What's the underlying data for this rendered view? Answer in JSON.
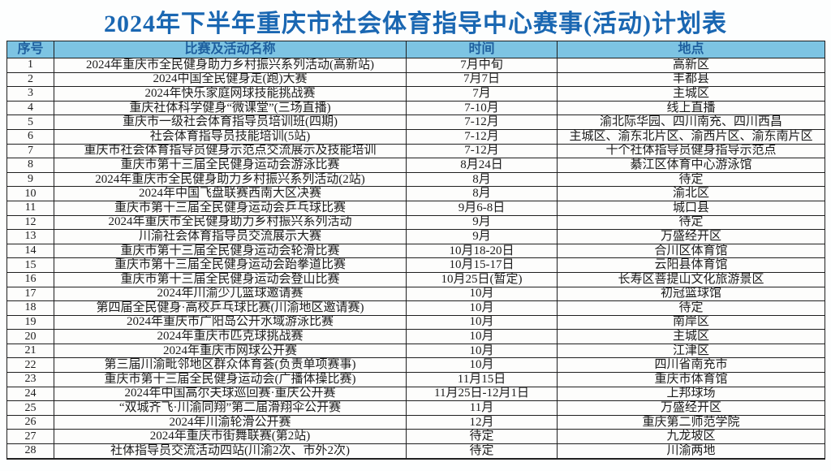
{
  "title": "2024年下半年重庆市社会体育指导中心赛事(活动)计划表",
  "colors": {
    "page-bg": "#fdfefe",
    "title-text": "#1a67b2",
    "header-bg": "#7dc4e3",
    "header-text": "#1e5f9e",
    "border": "#1f1f1f",
    "body-text": "#1c1c1c",
    "cell-bg": "#fdfdfc"
  },
  "table": {
    "headers": [
      "序号",
      "比赛及活动名称",
      "时间",
      "地点"
    ],
    "rows": [
      [
        "1",
        "2024年重庆市全民健身助力乡村振兴系列活动(高新站)",
        "7月中旬",
        "高新区"
      ],
      [
        "2",
        "2024中国全民健身走(跑)大赛",
        "7月7日",
        "丰都县"
      ],
      [
        "3",
        "2024年快乐家庭网球技能挑战赛",
        "7月",
        "主城区"
      ],
      [
        "4",
        "重庆社体科学健身“微课堂”(三场直播)",
        "7-10月",
        "线上直播"
      ],
      [
        "5",
        "重庆市一级社会体育指导员培训班(四期)",
        "7-12月",
        "渝北际华园、四川南充、四川西昌"
      ],
      [
        "6",
        "社会体育指导员技能培训(5站)",
        "7-12月",
        "主城区、渝东北片区、渝西片区、渝东南片区"
      ],
      [
        "7",
        "重庆市社会体育指导员健身示范点交流展示及技能培训",
        "7-12月",
        "十个社体指导员健身指导示范点"
      ],
      [
        "8",
        "重庆市第十三届全民健身运动会游泳比赛",
        "8月24日",
        "綦江区体育中心游泳馆"
      ],
      [
        "9",
        "2024年重庆市全民健身助力乡村振兴系列活动(2站)",
        "8月",
        "待定"
      ],
      [
        "10",
        "2024年中国飞盘联赛西南大区决赛",
        "8月",
        "渝北区"
      ],
      [
        "11",
        "重庆市第十三届全民健身运动会乒乓球比赛",
        "9月6-8日",
        "城口县"
      ],
      [
        "12",
        "2024年重庆市全民健身助力乡村振兴系列活动",
        "9月",
        "待定"
      ],
      [
        "13",
        "川渝社会体育指导员交流展示大赛",
        "9月",
        "万盛经开区"
      ],
      [
        "14",
        "重庆市第十三届全民健身运动会轮滑比赛",
        "10月18-20日",
        "合川区体育馆"
      ],
      [
        "15",
        "重庆市第十三届全民健身运动会跆拳道比赛",
        "10月15-17日",
        "云阳县体育馆"
      ],
      [
        "16",
        "重庆市第十三届全民健身运动会登山比赛",
        "10月25日(暂定)",
        "长寿区菩提山文化旅游景区"
      ],
      [
        "17",
        "2024年川渝少儿篮球邀请赛",
        "10月",
        "初冠篮球馆"
      ],
      [
        "18",
        "第四届全民健身·高校乒乓球比赛(川渝地区邀请赛)",
        "10月",
        "待定"
      ],
      [
        "19",
        "2024年重庆市广阳岛公开水域游泳比赛",
        "10月",
        "南岸区"
      ],
      [
        "20",
        "2024年重庆市匹克球挑战赛",
        "10月",
        "主城区"
      ],
      [
        "21",
        "2024年重庆市网球公开赛",
        "10月",
        "江津区"
      ],
      [
        "22",
        "第三届川渝毗邻地区群众体育荟(负责单项赛事)",
        "10月",
        "四川省南充市"
      ],
      [
        "23",
        "重庆市第十三届全民健身运动会(广播体操比赛)",
        "11月15日",
        "重庆市体育馆"
      ],
      [
        "24",
        "2024年中国高尔夫球巡回赛·重庆公开赛",
        "11月25日-12月1日",
        "上邦球场"
      ],
      [
        "25",
        "“双城齐飞·川渝同翔”第二届滑翔伞公开赛",
        "11月",
        "万盛经开区"
      ],
      [
        "26",
        "2024年川渝轮滑公开赛",
        "12月",
        "重庆第二师范学院"
      ],
      [
        "27",
        "2024年重庆市街舞联赛(第2站)",
        "待定",
        "九龙坡区"
      ],
      [
        "28",
        "社体指导员交流活动四站(川渝2次、市外2次)",
        "待定",
        "川渝两地"
      ]
    ]
  }
}
